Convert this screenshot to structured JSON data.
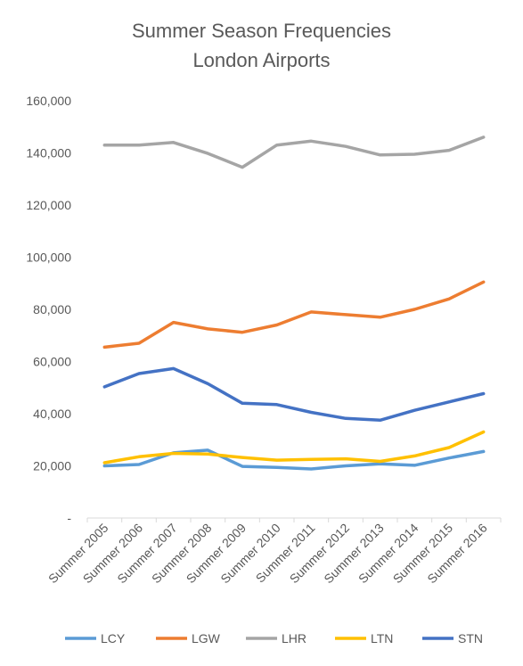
{
  "chart_data": {
    "type": "line",
    "title": [
      "Summer Season Frequencies",
      "London Airports"
    ],
    "xlabel": "",
    "ylabel": "",
    "ylim": [
      0,
      160000
    ],
    "ytick_labels": [
      "-",
      "20,000",
      "40,000",
      "60,000",
      "80,000",
      "100,000",
      "120,000",
      "140,000",
      "160,000"
    ],
    "grid": false,
    "legend_position": "bottom",
    "categories": [
      "Summer 2005",
      "Summer 2006",
      "Summer 2007",
      "Summer 2008",
      "Summer 2009",
      "Summer 2010",
      "Summer 2011",
      "Summer 2012",
      "Summer 2013",
      "Summer 2014",
      "Summer 2015",
      "Summer 2016"
    ],
    "series": [
      {
        "name": "LCY",
        "color": "#5B9BD5",
        "values": [
          20000,
          20500,
          25000,
          26000,
          19800,
          19400,
          18800,
          20000,
          20800,
          20200,
          23000,
          25500
        ]
      },
      {
        "name": "LGW",
        "color": "#ED7D31",
        "values": [
          65500,
          67000,
          75000,
          72500,
          71200,
          74000,
          79000,
          78000,
          77000,
          80000,
          84000,
          90500
        ]
      },
      {
        "name": "LHR",
        "color": "#A5A5A5",
        "values": [
          143000,
          143000,
          144000,
          139800,
          134500,
          143000,
          144500,
          142500,
          139200,
          139500,
          141000,
          146000
        ]
      },
      {
        "name": "LTN",
        "color": "#FFC000",
        "values": [
          21200,
          23500,
          24800,
          24500,
          23200,
          22200,
          22500,
          22700,
          21700,
          23800,
          27000,
          33000
        ]
      },
      {
        "name": "STN",
        "color": "#4472C4",
        "values": [
          50300,
          55400,
          57300,
          51500,
          44000,
          43500,
          40500,
          38200,
          37500,
          41300,
          44500,
          47700
        ]
      }
    ]
  }
}
